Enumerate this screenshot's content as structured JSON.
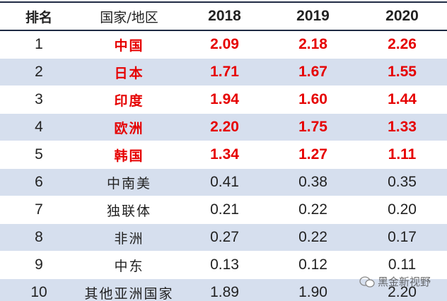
{
  "table": {
    "header": [
      "排名",
      "国家/地区",
      "2018",
      "2019",
      "2020"
    ],
    "rows": [
      [
        "1",
        "中国",
        "2.09",
        "2.18",
        "2.26"
      ],
      [
        "2",
        "日本",
        "1.71",
        "1.67",
        "1.55"
      ],
      [
        "3",
        "印度",
        "1.94",
        "1.60",
        "1.44"
      ],
      [
        "4",
        "欧洲",
        "2.20",
        "1.75",
        "1.33"
      ],
      [
        "5",
        "韩国",
        "1.34",
        "1.27",
        "1.11"
      ],
      [
        "6",
        "中南美",
        "0.41",
        "0.38",
        "0.35"
      ],
      [
        "7",
        "独联体",
        "0.21",
        "0.22",
        "0.20"
      ],
      [
        "8",
        "非洲",
        "0.27",
        "0.22",
        "0.17"
      ],
      [
        "9",
        "中东",
        "0.13",
        "0.12",
        "0.11"
      ],
      [
        "10",
        "其他亚洲国家",
        "1.89",
        "1.90",
        "2.20"
      ]
    ]
  },
  "watermark": "黑金新视野"
}
